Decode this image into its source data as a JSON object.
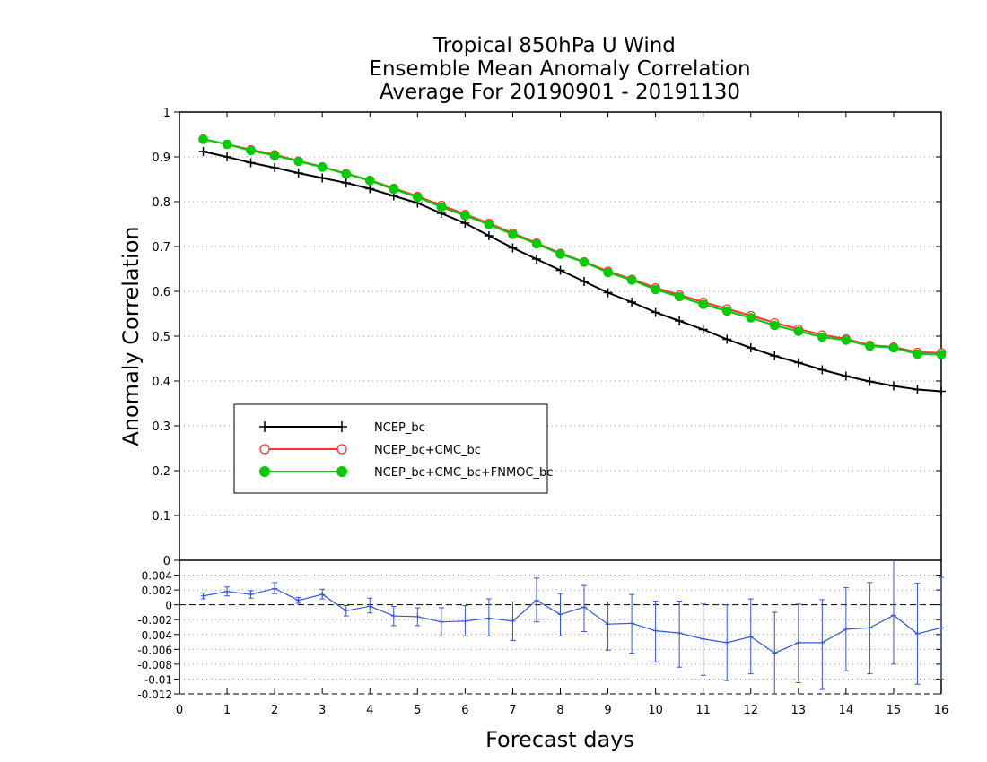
{
  "chart_data": [
    {
      "type": "line",
      "title_lines": [
        "Tropical 850hPa U Wind",
        "Ensemble Mean Anomaly Correlation",
        "Average For 20190901 - 20191130"
      ],
      "ylabel": "Anomaly Correlation",
      "xlabel": "Forecast days",
      "xlim": [
        0,
        16
      ],
      "ylim": [
        0,
        1
      ],
      "x_ticks": [
        0,
        1,
        2,
        3,
        4,
        5,
        6,
        7,
        8,
        9,
        10,
        11,
        12,
        13,
        14,
        15,
        16
      ],
      "y_ticks": [
        0,
        0.1,
        0.2,
        0.3,
        0.4,
        0.5,
        0.6,
        0.7,
        0.8,
        0.9,
        1
      ],
      "y_tick_labels": [
        "0",
        "0.1",
        "0.2",
        "0.3",
        "0.4",
        "0.5",
        "0.6",
        "0.7",
        "0.8",
        "0.9",
        "1"
      ],
      "grid": "horizontal dotted",
      "legend_position": "lower-left",
      "x": [
        0.5,
        1,
        1.5,
        2,
        2.5,
        3,
        3.5,
        4,
        4.5,
        5,
        5.5,
        6,
        6.5,
        7,
        7.5,
        8,
        8.5,
        9,
        9.5,
        10,
        10.5,
        11,
        11.5,
        12,
        12.5,
        13,
        13.5,
        14,
        14.5,
        15,
        15.5,
        16
      ],
      "series": [
        {
          "name": "NCEP_bc",
          "color": "#000000",
          "marker": "plus",
          "values": [
            0.912,
            0.9,
            0.887,
            0.876,
            0.864,
            0.853,
            0.842,
            0.829,
            0.813,
            0.797,
            0.774,
            0.752,
            0.724,
            0.697,
            0.672,
            0.647,
            0.622,
            0.597,
            0.576,
            0.553,
            0.534,
            0.515,
            0.493,
            0.474,
            0.456,
            0.441,
            0.425,
            0.411,
            0.399,
            0.389,
            0.381,
            0.377
          ]
        },
        {
          "name": "NCEP_bc+CMC_bc",
          "color": "#ff3333",
          "marker": "open-circle",
          "values": [
            0.94,
            0.928,
            0.916,
            0.905,
            0.891,
            0.878,
            0.863,
            0.848,
            0.83,
            0.812,
            0.792,
            0.772,
            0.752,
            0.73,
            0.708,
            0.685,
            0.666,
            0.645,
            0.627,
            0.608,
            0.592,
            0.576,
            0.561,
            0.546,
            0.53,
            0.516,
            0.503,
            0.494,
            0.48,
            0.476,
            0.464,
            0.463
          ]
        },
        {
          "name": "NCEP_bc+CMC_bc+FNMOC_bc",
          "color": "#00cc00",
          "marker": "filled-circle",
          "values": [
            0.939,
            0.928,
            0.914,
            0.903,
            0.89,
            0.877,
            0.862,
            0.847,
            0.828,
            0.81,
            0.788,
            0.769,
            0.749,
            0.727,
            0.706,
            0.683,
            0.665,
            0.642,
            0.625,
            0.604,
            0.588,
            0.571,
            0.556,
            0.541,
            0.524,
            0.511,
            0.498,
            0.491,
            0.478,
            0.474,
            0.46,
            0.459
          ]
        }
      ]
    },
    {
      "type": "line",
      "xlim": [
        0,
        16
      ],
      "ylim": [
        -0.012,
        0.006
      ],
      "y_ticks": [
        0.004,
        0.002,
        0,
        -0.002,
        -0.004,
        -0.006,
        -0.008,
        -0.01,
        -0.012
      ],
      "y_tick_labels": [
        "0.004",
        "0.002",
        "0",
        "-0.002",
        "-0.004",
        "-0.006",
        "-0.008",
        "-0.01",
        "-0.012"
      ],
      "grid": "horizontal dotted",
      "color": "#3355dd",
      "x": [
        0.5,
        1,
        1.5,
        2,
        2.5,
        3,
        3.5,
        4,
        4.5,
        5,
        5.5,
        6,
        6.5,
        7,
        7.5,
        8,
        8.5,
        9,
        9.5,
        10,
        10.5,
        11,
        11.5,
        12,
        12.5,
        13,
        13.5,
        14,
        14.5,
        15,
        15.5,
        16
      ],
      "values": [
        0.0012,
        0.0018,
        0.0014,
        0.0022,
        0.0006,
        0.0014,
        -0.0008,
        -0.0002,
        -0.0015,
        -0.0016,
        -0.0023,
        -0.0022,
        -0.0018,
        -0.0022,
        0.0006,
        -0.0013,
        -0.0003,
        -0.0026,
        -0.0025,
        -0.0035,
        -0.0038,
        -0.0046,
        -0.0051,
        -0.0043,
        -0.0065,
        -0.0051,
        -0.0051,
        -0.0033,
        -0.0031,
        -0.0014,
        -0.0039,
        -0.0031
      ],
      "err_low": [
        0.0008,
        0.0012,
        0.0009,
        0.0015,
        0.0002,
        0.0008,
        -0.0015,
        -0.0011,
        -0.0028,
        -0.0028,
        -0.0042,
        -0.0042,
        -0.0042,
        -0.0048,
        -0.0023,
        -0.0042,
        -0.0036,
        -0.0061,
        -0.0065,
        -0.0077,
        -0.0084,
        -0.0095,
        -0.0102,
        -0.0093,
        -0.0124,
        -0.0105,
        -0.0114,
        -0.0089,
        -0.0093,
        -0.008,
        -0.0107,
        -0.01
      ],
      "err_high": [
        0.0016,
        0.0024,
        0.0019,
        0.003,
        0.001,
        0.0021,
        -0.0001,
        0.0009,
        -0.0002,
        -0.0004,
        -0.0004,
        -0.0001,
        0.0008,
        0.0004,
        0.0036,
        0.0015,
        0.0026,
        0.0004,
        0.0014,
        0.0005,
        0.0005,
        0.0001,
        -0.0,
        0.0008,
        -0.001,
        0.0001,
        0.0007,
        0.0023,
        0.003,
        0.0061,
        0.0029,
        0.0037
      ]
    }
  ]
}
